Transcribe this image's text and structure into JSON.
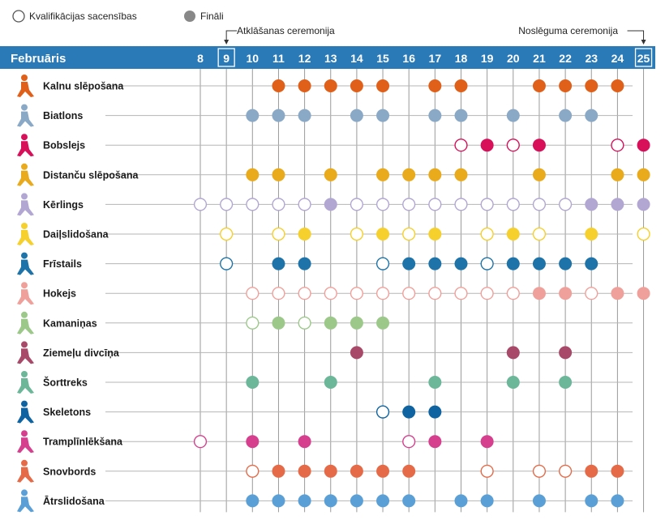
{
  "legend": {
    "qualification_label": "Kvalifikācijas sacensības",
    "final_label": "Fināli"
  },
  "ceremonies": {
    "opening_label": "Atklāšanas ceremonija",
    "closing_label": "Noslēguma ceremonija",
    "opening_day": 9,
    "closing_day": 25
  },
  "header": {
    "month_label": "Februāris",
    "bar_color": "#2a7ab8"
  },
  "chart_data": {
    "type": "table",
    "days": [
      8,
      9,
      10,
      11,
      12,
      13,
      14,
      15,
      16,
      17,
      18,
      19,
      20,
      21,
      22,
      23,
      24,
      25
    ],
    "sports": [
      {
        "name": "Kalnu slēpošana",
        "color": "#e0601a",
        "icon": "alpine-skiing-icon",
        "qualification": [],
        "final": [
          11,
          12,
          13,
          14,
          15,
          17,
          18,
          21,
          22,
          23,
          24
        ]
      },
      {
        "name": "Biatlons",
        "color": "#8aa9c6",
        "icon": "biathlon-icon",
        "qualification": [],
        "final": [
          10,
          11,
          12,
          14,
          15,
          17,
          18,
          20,
          22,
          23
        ]
      },
      {
        "name": "Bobslejs",
        "color": "#d8105a",
        "icon": "bobsleigh-icon",
        "qualification": [
          18,
          20,
          24
        ],
        "final": [
          19,
          21,
          25
        ]
      },
      {
        "name": "Distanču slēpošana",
        "color": "#e9aa1c",
        "icon": "cross-country-skiing-icon",
        "qualification": [],
        "final": [
          10,
          11,
          13,
          15,
          16,
          17,
          18,
          21,
          24,
          25
        ]
      },
      {
        "name": "Kērlings",
        "color": "#b2a7d2",
        "icon": "curling-icon",
        "qualification": [
          8,
          9,
          10,
          11,
          12,
          14,
          15,
          16,
          17,
          18,
          19,
          20,
          21,
          22
        ],
        "final": [
          13,
          23,
          24,
          25
        ]
      },
      {
        "name": "Daiļslidošana",
        "color": "#f6d02c",
        "icon": "figure-skating-icon",
        "qualification": [
          9,
          11,
          14,
          16,
          19,
          21,
          25
        ],
        "final": [
          12,
          15,
          17,
          20,
          23
        ]
      },
      {
        "name": "Frīstails",
        "color": "#1e73a8",
        "icon": "freestyle-skiing-icon",
        "qualification": [
          9,
          15,
          19
        ],
        "final": [
          11,
          12,
          16,
          17,
          18,
          20,
          21,
          22,
          23
        ]
      },
      {
        "name": "Hokejs",
        "color": "#f0a09a",
        "icon": "ice-hockey-icon",
        "qualification": [
          10,
          11,
          12,
          13,
          14,
          15,
          16,
          17,
          18,
          19,
          20,
          23
        ],
        "final": [
          21,
          22,
          24,
          25
        ]
      },
      {
        "name": "Kamaniņas",
        "color": "#9cc98a",
        "icon": "luge-icon",
        "qualification": [
          10,
          12
        ],
        "final": [
          11,
          13,
          14,
          15
        ]
      },
      {
        "name": "Ziemeļu divcīņa",
        "color": "#a8496a",
        "icon": "nordic-combined-icon",
        "qualification": [],
        "final": [
          14,
          20,
          22
        ]
      },
      {
        "name": "Šorttreks",
        "color": "#6cb79a",
        "icon": "short-track-icon",
        "qualification": [],
        "final": [
          10,
          13,
          17,
          20,
          22
        ]
      },
      {
        "name": "Skeletons",
        "color": "#0e63a0",
        "icon": "skeleton-icon",
        "qualification": [
          15
        ],
        "final": [
          16,
          17
        ]
      },
      {
        "name": "Tramplīnlēkšana",
        "color": "#d63f8e",
        "icon": "ski-jumping-icon",
        "qualification": [
          8,
          16
        ],
        "final": [
          10,
          12,
          17,
          19
        ]
      },
      {
        "name": "Snovbords",
        "color": "#e56a48",
        "icon": "snowboard-icon",
        "qualification": [
          10,
          19,
          21,
          22
        ],
        "final": [
          11,
          12,
          13,
          14,
          15,
          16,
          23,
          24
        ]
      },
      {
        "name": "Ātrslidošana",
        "color": "#5aa0d6",
        "icon": "speed-skating-icon",
        "qualification": [],
        "final": [
          10,
          11,
          12,
          13,
          14,
          15,
          16,
          18,
          19,
          21,
          23,
          24
        ]
      }
    ]
  }
}
